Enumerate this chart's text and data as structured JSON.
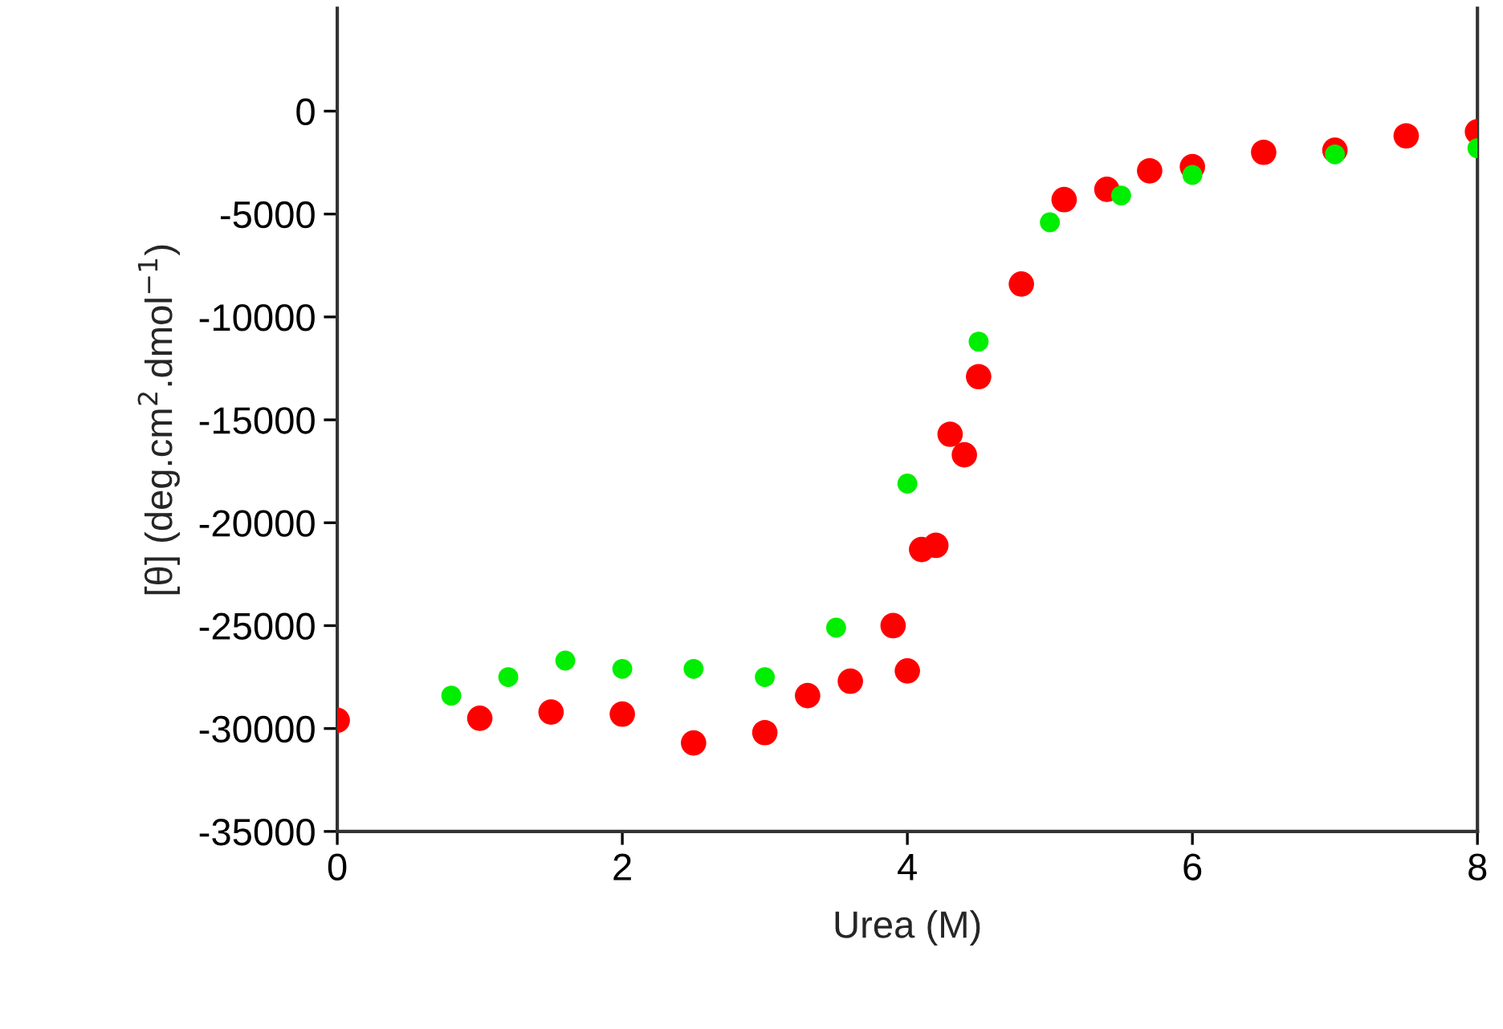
{
  "chart_data": {
    "type": "scatter",
    "xlabel": "Urea (M)",
    "ylabel": "[θ] (deg.cm$^{2}$.dmol$^{−1}$)",
    "marker": "circle",
    "grid": false,
    "legend": false,
    "xlim": [
      0,
      8
    ],
    "xticks": [
      0,
      2,
      4,
      6,
      8
    ],
    "ylim": [
      -35000,
      5000
    ],
    "yticks": [
      -35000,
      -30000,
      -25000,
      -20000,
      -15000,
      -10000,
      -5000,
      0
    ],
    "series": [
      {
        "color": "#ff0000",
        "x": [
          0,
          1.0,
          1.5,
          2.0,
          2.5,
          3.0,
          3.3,
          3.6,
          3.9,
          4.0,
          4.1,
          4.2,
          4.3,
          4.4,
          4.5,
          4.8,
          5.1,
          5.4,
          5.7,
          6.0,
          6.5,
          7.0,
          7.5,
          8.0
        ],
        "values": [
          -29600,
          -29500,
          -29200,
          -29300,
          -30700,
          -30200,
          -28400,
          -27700,
          -25000,
          -27200,
          -21300,
          -21100,
          -15700,
          -16700,
          -12900,
          -8400,
          -4300,
          -3800,
          -2900,
          -2700,
          -2000,
          -1900,
          -1200,
          -1000
        ]
      },
      {
        "color": "#00ee00",
        "x": [
          0.8,
          1.2,
          1.6,
          2.0,
          2.5,
          3.0,
          3.5,
          4.0,
          4.5,
          5.0,
          5.5,
          6.0,
          7.0,
          8.0
        ],
        "values": [
          -28400,
          -27500,
          -26700,
          -27100,
          -27100,
          -27500,
          -25100,
          -18100,
          -11200,
          -5400,
          -4100,
          -3100,
          -2100,
          -1800
        ]
      }
    ]
  }
}
